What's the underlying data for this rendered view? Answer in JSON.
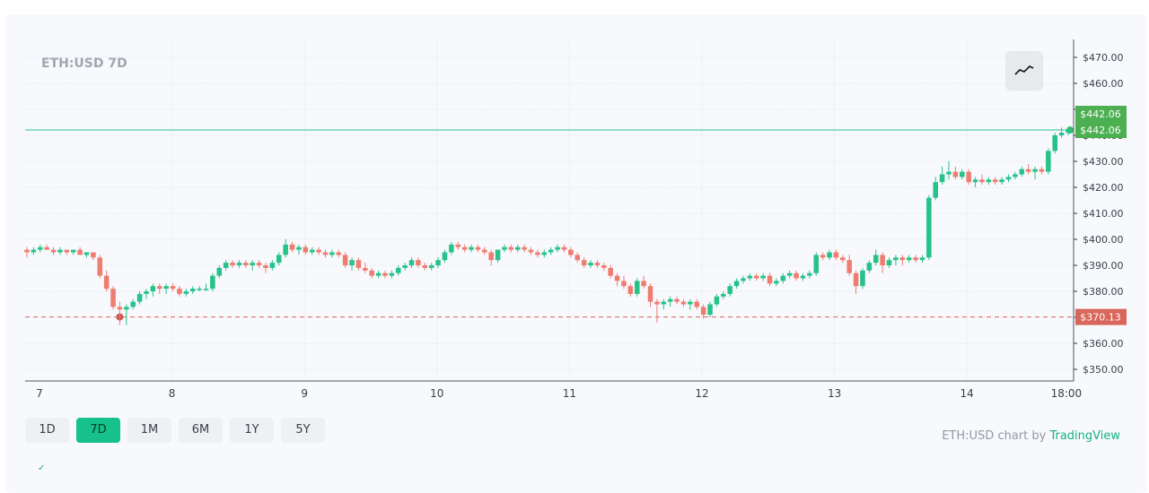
{
  "symbol_title": "ETH:USD 7D",
  "chart_type_icon": "line-chart-icon",
  "range_buttons": [
    {
      "label": "1D",
      "active": false
    },
    {
      "label": "7D",
      "active": true
    },
    {
      "label": "1M",
      "active": false
    },
    {
      "label": "6M",
      "active": false
    },
    {
      "label": "1Y",
      "active": false
    },
    {
      "label": "5Y",
      "active": false
    }
  ],
  "attribution": {
    "prefix": "ETH:USD chart by ",
    "brand": "TradingView"
  },
  "colors": {
    "up": "#26c28a",
    "down": "#ef7c70",
    "high_line": "#6dd5b4",
    "low_line": "#d9695c",
    "badge_high": "#4caf50",
    "badge_low": "#d9665a"
  },
  "bottom_mark": "✓",
  "chart_data": {
    "type": "candlestick",
    "title": "ETH:USD 7D",
    "xlabel": "",
    "ylabel": "",
    "ylim": [
      345,
      474
    ],
    "y_ticks": [
      350,
      360,
      370,
      380,
      390,
      400,
      410,
      420,
      430,
      440,
      450,
      460,
      470
    ],
    "y_tick_labels": [
      "$350.00",
      "$360.00",
      "$370.00",
      "$380.00",
      "$390.00",
      "$400.00",
      "$410.00",
      "$420.00",
      "$430.00",
      "$440.00",
      "$450.00",
      "$460.00",
      "$470.00"
    ],
    "x_labels": [
      {
        "label": "7",
        "day": 0
      },
      {
        "label": "8",
        "day": 1
      },
      {
        "label": "9",
        "day": 2
      },
      {
        "label": "10",
        "day": 3
      },
      {
        "label": "11",
        "day": 4
      },
      {
        "label": "12",
        "day": 5
      },
      {
        "label": "13",
        "day": 6
      },
      {
        "label": "14",
        "day": 7
      },
      {
        "label": "18:00",
        "day": 7.75
      }
    ],
    "x_range_days": [
      -0.1,
      7.82
    ],
    "high_price": 442.06,
    "high_label": "$442.06",
    "last_price": 442.06,
    "last_label": "$442.06",
    "low_price": 370.13,
    "low_label": "$370.13",
    "candles": [
      {
        "o": 396,
        "h": 397,
        "l": 393,
        "c": 395
      },
      {
        "o": 395,
        "h": 397,
        "l": 394,
        "c": 396
      },
      {
        "o": 396,
        "h": 398,
        "l": 395,
        "c": 397
      },
      {
        "o": 397,
        "h": 398,
        "l": 396,
        "c": 396
      },
      {
        "o": 396,
        "h": 397,
        "l": 394,
        "c": 395
      },
      {
        "o": 395,
        "h": 397,
        "l": 394,
        "c": 396
      },
      {
        "o": 396,
        "h": 396,
        "l": 394,
        "c": 395
      },
      {
        "o": 395,
        "h": 396,
        "l": 394,
        "c": 396
      },
      {
        "o": 396,
        "h": 397,
        "l": 394,
        "c": 394
      },
      {
        "o": 394,
        "h": 395,
        "l": 393,
        "c": 395
      },
      {
        "o": 395,
        "h": 395,
        "l": 392,
        "c": 393
      },
      {
        "o": 393,
        "h": 394,
        "l": 385,
        "c": 386
      },
      {
        "o": 386,
        "h": 388,
        "l": 380,
        "c": 381
      },
      {
        "o": 381,
        "h": 382,
        "l": 373,
        "c": 374
      },
      {
        "o": 374,
        "h": 376,
        "l": 367,
        "c": 373
      },
      {
        "o": 373,
        "h": 375,
        "l": 367,
        "c": 374
      },
      {
        "o": 374,
        "h": 377,
        "l": 373,
        "c": 376
      },
      {
        "o": 376,
        "h": 380,
        "l": 375,
        "c": 379
      },
      {
        "o": 379,
        "h": 381,
        "l": 377,
        "c": 380
      },
      {
        "o": 380,
        "h": 383,
        "l": 378,
        "c": 382
      },
      {
        "o": 382,
        "h": 383,
        "l": 379,
        "c": 381
      },
      {
        "o": 381,
        "h": 383,
        "l": 379,
        "c": 382
      },
      {
        "o": 382,
        "h": 383,
        "l": 380,
        "c": 381
      },
      {
        "o": 381,
        "h": 382,
        "l": 378,
        "c": 379
      },
      {
        "o": 379,
        "h": 381,
        "l": 378,
        "c": 380
      },
      {
        "o": 380,
        "h": 382,
        "l": 379,
        "c": 381
      },
      {
        "o": 381,
        "h": 382,
        "l": 380,
        "c": 381
      },
      {
        "o": 381,
        "h": 383,
        "l": 380,
        "c": 381
      },
      {
        "o": 381,
        "h": 387,
        "l": 380,
        "c": 386
      },
      {
        "o": 386,
        "h": 390,
        "l": 385,
        "c": 389
      },
      {
        "o": 389,
        "h": 392,
        "l": 388,
        "c": 391
      },
      {
        "o": 391,
        "h": 392,
        "l": 389,
        "c": 390
      },
      {
        "o": 390,
        "h": 392,
        "l": 389,
        "c": 391
      },
      {
        "o": 391,
        "h": 392,
        "l": 389,
        "c": 390
      },
      {
        "o": 390,
        "h": 392,
        "l": 388,
        "c": 391
      },
      {
        "o": 391,
        "h": 392,
        "l": 389,
        "c": 390
      },
      {
        "o": 390,
        "h": 391,
        "l": 387,
        "c": 389
      },
      {
        "o": 389,
        "h": 392,
        "l": 388,
        "c": 391
      },
      {
        "o": 391,
        "h": 395,
        "l": 390,
        "c": 394
      },
      {
        "o": 394,
        "h": 400,
        "l": 393,
        "c": 398
      },
      {
        "o": 398,
        "h": 399,
        "l": 395,
        "c": 396
      },
      {
        "o": 396,
        "h": 398,
        "l": 394,
        "c": 397
      },
      {
        "o": 397,
        "h": 398,
        "l": 394,
        "c": 395
      },
      {
        "o": 395,
        "h": 397,
        "l": 394,
        "c": 396
      },
      {
        "o": 396,
        "h": 397,
        "l": 394,
        "c": 395
      },
      {
        "o": 395,
        "h": 396,
        "l": 393,
        "c": 394
      },
      {
        "o": 394,
        "h": 396,
        "l": 393,
        "c": 395
      },
      {
        "o": 395,
        "h": 396,
        "l": 393,
        "c": 394
      },
      {
        "o": 394,
        "h": 395,
        "l": 389,
        "c": 390
      },
      {
        "o": 390,
        "h": 393,
        "l": 388,
        "c": 392
      },
      {
        "o": 392,
        "h": 393,
        "l": 388,
        "c": 389
      },
      {
        "o": 389,
        "h": 391,
        "l": 387,
        "c": 388
      },
      {
        "o": 388,
        "h": 389,
        "l": 385,
        "c": 386
      },
      {
        "o": 386,
        "h": 388,
        "l": 385,
        "c": 387
      },
      {
        "o": 387,
        "h": 388,
        "l": 385,
        "c": 386
      },
      {
        "o": 386,
        "h": 388,
        "l": 385,
        "c": 387
      },
      {
        "o": 387,
        "h": 390,
        "l": 386,
        "c": 389
      },
      {
        "o": 389,
        "h": 391,
        "l": 388,
        "c": 390
      },
      {
        "o": 390,
        "h": 393,
        "l": 389,
        "c": 392
      },
      {
        "o": 392,
        "h": 393,
        "l": 389,
        "c": 390
      },
      {
        "o": 390,
        "h": 391,
        "l": 388,
        "c": 389
      },
      {
        "o": 389,
        "h": 391,
        "l": 388,
        "c": 390
      },
      {
        "o": 390,
        "h": 393,
        "l": 389,
        "c": 392
      },
      {
        "o": 392,
        "h": 396,
        "l": 391,
        "c": 395
      },
      {
        "o": 395,
        "h": 399,
        "l": 394,
        "c": 398
      },
      {
        "o": 398,
        "h": 399,
        "l": 396,
        "c": 397
      },
      {
        "o": 397,
        "h": 398,
        "l": 395,
        "c": 396
      },
      {
        "o": 396,
        "h": 398,
        "l": 395,
        "c": 397
      },
      {
        "o": 397,
        "h": 398,
        "l": 395,
        "c": 396
      },
      {
        "o": 396,
        "h": 397,
        "l": 394,
        "c": 395
      },
      {
        "o": 395,
        "h": 396,
        "l": 390,
        "c": 392
      },
      {
        "o": 392,
        "h": 396,
        "l": 391,
        "c": 396
      },
      {
        "o": 396,
        "h": 398,
        "l": 395,
        "c": 397
      },
      {
        "o": 397,
        "h": 398,
        "l": 395,
        "c": 396
      },
      {
        "o": 396,
        "h": 398,
        "l": 395,
        "c": 397
      },
      {
        "o": 397,
        "h": 398,
        "l": 395,
        "c": 396
      },
      {
        "o": 396,
        "h": 397,
        "l": 394,
        "c": 395
      },
      {
        "o": 395,
        "h": 396,
        "l": 393,
        "c": 394
      },
      {
        "o": 394,
        "h": 396,
        "l": 393,
        "c": 395
      },
      {
        "o": 395,
        "h": 397,
        "l": 394,
        "c": 396
      },
      {
        "o": 396,
        "h": 398,
        "l": 395,
        "c": 397
      },
      {
        "o": 397,
        "h": 398,
        "l": 395,
        "c": 396
      },
      {
        "o": 396,
        "h": 397,
        "l": 393,
        "c": 394
      },
      {
        "o": 394,
        "h": 395,
        "l": 391,
        "c": 392
      },
      {
        "o": 392,
        "h": 393,
        "l": 389,
        "c": 390
      },
      {
        "o": 390,
        "h": 392,
        "l": 389,
        "c": 391
      },
      {
        "o": 391,
        "h": 392,
        "l": 389,
        "c": 390
      },
      {
        "o": 390,
        "h": 391,
        "l": 388,
        "c": 389
      },
      {
        "o": 389,
        "h": 390,
        "l": 385,
        "c": 386
      },
      {
        "o": 386,
        "h": 387,
        "l": 382,
        "c": 384
      },
      {
        "o": 384,
        "h": 386,
        "l": 381,
        "c": 382
      },
      {
        "o": 382,
        "h": 383,
        "l": 378,
        "c": 379
      },
      {
        "o": 379,
        "h": 385,
        "l": 378,
        "c": 384
      },
      {
        "o": 384,
        "h": 386,
        "l": 381,
        "c": 382
      },
      {
        "o": 382,
        "h": 383,
        "l": 374,
        "c": 376
      },
      {
        "o": 376,
        "h": 377,
        "l": 368,
        "c": 375
      },
      {
        "o": 375,
        "h": 377,
        "l": 373,
        "c": 376
      },
      {
        "o": 376,
        "h": 378,
        "l": 374,
        "c": 377
      },
      {
        "o": 377,
        "h": 378,
        "l": 375,
        "c": 376
      },
      {
        "o": 376,
        "h": 377,
        "l": 374,
        "c": 375
      },
      {
        "o": 375,
        "h": 377,
        "l": 373,
        "c": 376
      },
      {
        "o": 376,
        "h": 377,
        "l": 373,
        "c": 374
      },
      {
        "o": 374,
        "h": 375,
        "l": 369.5,
        "c": 371
      },
      {
        "o": 371,
        "h": 376,
        "l": 370,
        "c": 375
      },
      {
        "o": 375,
        "h": 379,
        "l": 374,
        "c": 378
      },
      {
        "o": 378,
        "h": 380,
        "l": 377,
        "c": 379
      },
      {
        "o": 379,
        "h": 383,
        "l": 378,
        "c": 382
      },
      {
        "o": 382,
        "h": 385,
        "l": 381,
        "c": 384
      },
      {
        "o": 384,
        "h": 386,
        "l": 383,
        "c": 385
      },
      {
        "o": 385,
        "h": 387,
        "l": 384,
        "c": 386
      },
      {
        "o": 386,
        "h": 387,
        "l": 384,
        "c": 385
      },
      {
        "o": 385,
        "h": 387,
        "l": 384,
        "c": 386
      },
      {
        "o": 386,
        "h": 387,
        "l": 382,
        "c": 383
      },
      {
        "o": 383,
        "h": 385,
        "l": 382,
        "c": 384
      },
      {
        "o": 384,
        "h": 387,
        "l": 383,
        "c": 386
      },
      {
        "o": 386,
        "h": 388,
        "l": 385,
        "c": 387
      },
      {
        "o": 387,
        "h": 388,
        "l": 384,
        "c": 385
      },
      {
        "o": 385,
        "h": 387,
        "l": 384,
        "c": 386
      },
      {
        "o": 386,
        "h": 388,
        "l": 385,
        "c": 387
      },
      {
        "o": 387,
        "h": 395,
        "l": 386,
        "c": 394
      },
      {
        "o": 394,
        "h": 395,
        "l": 392,
        "c": 393
      },
      {
        "o": 393,
        "h": 396,
        "l": 392,
        "c": 395
      },
      {
        "o": 395,
        "h": 396,
        "l": 392,
        "c": 393
      },
      {
        "o": 393,
        "h": 394,
        "l": 391,
        "c": 392
      },
      {
        "o": 392,
        "h": 394,
        "l": 386,
        "c": 387
      },
      {
        "o": 387,
        "h": 388,
        "l": 379,
        "c": 382
      },
      {
        "o": 382,
        "h": 389,
        "l": 381,
        "c": 388
      },
      {
        "o": 388,
        "h": 392,
        "l": 387,
        "c": 391
      },
      {
        "o": 391,
        "h": 396,
        "l": 390,
        "c": 394
      },
      {
        "o": 394,
        "h": 395,
        "l": 387,
        "c": 390
      },
      {
        "o": 390,
        "h": 393,
        "l": 389,
        "c": 392
      },
      {
        "o": 392,
        "h": 394,
        "l": 390,
        "c": 393
      },
      {
        "o": 393,
        "h": 394,
        "l": 390,
        "c": 392
      },
      {
        "o": 392,
        "h": 394,
        "l": 391,
        "c": 393
      },
      {
        "o": 393,
        "h": 394,
        "l": 391,
        "c": 392
      },
      {
        "o": 392,
        "h": 394,
        "l": 391,
        "c": 393
      },
      {
        "o": 393,
        "h": 417,
        "l": 392,
        "c": 416
      },
      {
        "o": 416,
        "h": 424,
        "l": 415,
        "c": 422
      },
      {
        "o": 422,
        "h": 428,
        "l": 421,
        "c": 425
      },
      {
        "o": 425,
        "h": 430,
        "l": 423,
        "c": 426
      },
      {
        "o": 426,
        "h": 428,
        "l": 423,
        "c": 424
      },
      {
        "o": 424,
        "h": 427,
        "l": 423,
        "c": 426
      },
      {
        "o": 426,
        "h": 427,
        "l": 421,
        "c": 422
      },
      {
        "o": 422,
        "h": 424,
        "l": 420,
        "c": 423
      },
      {
        "o": 423,
        "h": 425,
        "l": 421,
        "c": 422
      },
      {
        "o": 422,
        "h": 424,
        "l": 421,
        "c": 423
      },
      {
        "o": 423,
        "h": 424,
        "l": 421,
        "c": 422
      },
      {
        "o": 422,
        "h": 424,
        "l": 421,
        "c": 423
      },
      {
        "o": 423,
        "h": 425,
        "l": 422,
        "c": 424
      },
      {
        "o": 424,
        "h": 426,
        "l": 423,
        "c": 425
      },
      {
        "o": 425,
        "h": 428,
        "l": 424,
        "c": 427
      },
      {
        "o": 427,
        "h": 429,
        "l": 425,
        "c": 426
      },
      {
        "o": 426,
        "h": 428,
        "l": 423,
        "c": 427
      },
      {
        "o": 427,
        "h": 428,
        "l": 425,
        "c": 426
      },
      {
        "o": 426,
        "h": 435,
        "l": 425,
        "c": 434
      },
      {
        "o": 434,
        "h": 441,
        "l": 433,
        "c": 440
      },
      {
        "o": 440,
        "h": 443,
        "l": 439,
        "c": 441
      },
      {
        "o": 441,
        "h": 443,
        "l": 440,
        "c": 442.06
      }
    ]
  }
}
